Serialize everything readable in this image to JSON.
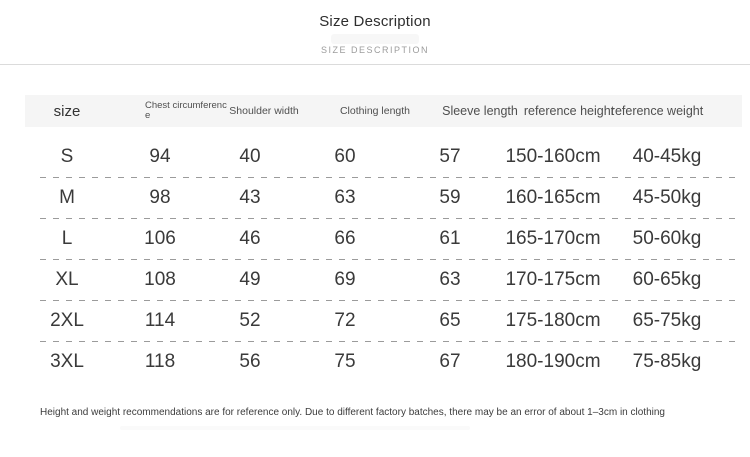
{
  "header": {
    "title": "Size Description",
    "subtitle": "SIZE DESCRIPTION"
  },
  "table": {
    "columns": [
      "size",
      "Chest circumference",
      "Shoulder width",
      "Clothing length",
      "Sleeve length",
      "reference height",
      "reference weight"
    ],
    "rows": [
      [
        "S",
        "94",
        "40",
        "60",
        "57",
        "150-160cm",
        "40-45kg"
      ],
      [
        "M",
        "98",
        "43",
        "63",
        "59",
        "160-165cm",
        "45-50kg"
      ],
      [
        "L",
        "106",
        "46",
        "66",
        "61",
        "165-170cm",
        "50-60kg"
      ],
      [
        "XL",
        "108",
        "49",
        "69",
        "63",
        "170-175cm",
        "60-65kg"
      ],
      [
        "2XL",
        "114",
        "52",
        "72",
        "65",
        "175-180cm",
        "65-75kg"
      ],
      [
        "3XL",
        "118",
        "56",
        "75",
        "67",
        "180-190cm",
        "75-85kg"
      ]
    ]
  },
  "footer": {
    "note": "Height and weight recommendations are for reference only. Due to different factory batches, there may be an error of about 1–3cm in clothing"
  },
  "colors": {
    "header_band": "#f5f5f5",
    "dashed_separator": "#9b9b9b",
    "divider": "#dbdbdb",
    "text_primary": "#3a3a3a",
    "text_muted": "#9c9c9c"
  }
}
